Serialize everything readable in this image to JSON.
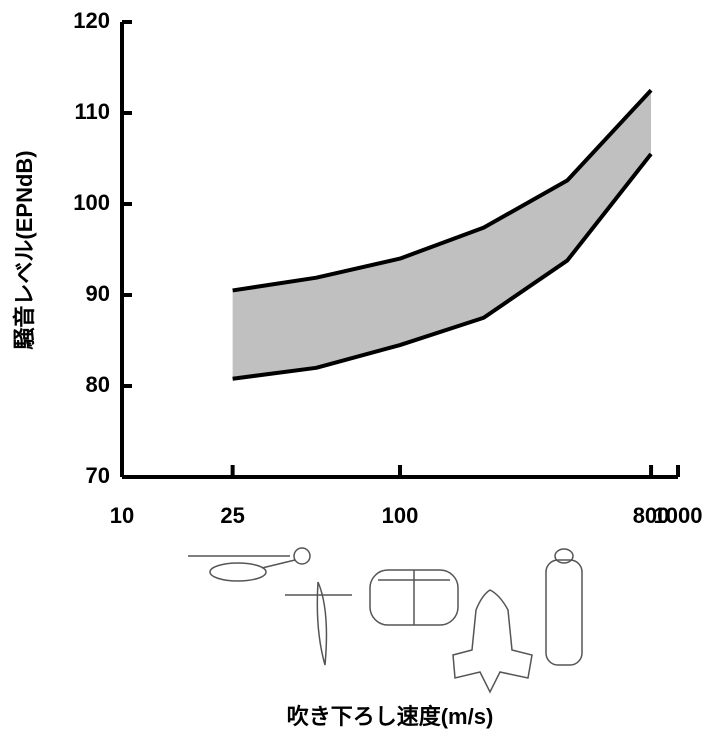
{
  "chart_data": {
    "type": "band",
    "ylabel": "騒音レベル(EPNdB)",
    "xlabel": "吹き下ろし速度(m/s)",
    "x": [
      25,
      50,
      100,
      200,
      400,
      800
    ],
    "upper": [
      90.5,
      91.9,
      94,
      97.4,
      102.6,
      112.5
    ],
    "lower": [
      80.8,
      82,
      84.5,
      87.5,
      93.8,
      105.5
    ],
    "fill": "#c0c0c0",
    "line_color": "#000000",
    "xscale": "log",
    "xlim": [
      10,
      1000
    ],
    "xticks": [
      10,
      25,
      100,
      800,
      1000
    ],
    "ylim": [
      70,
      120
    ],
    "yticks": [
      70,
      80,
      90,
      100,
      110,
      120
    ]
  }
}
